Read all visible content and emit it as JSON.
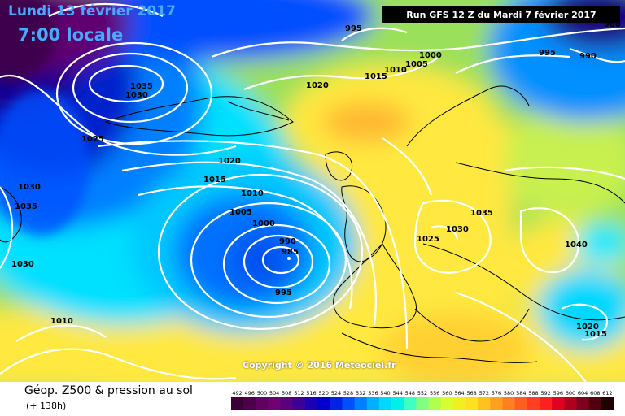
{
  "header": {
    "date": "Lundi 13 février 2017",
    "time": "7:00 locale",
    "run": "Run GFS 12 Z du Mardi 7 février 2017"
  },
  "copyright": "Copyright © 2016 Meteociel.fr",
  "footer": {
    "title": "Géop. Z500 & pression au sol",
    "subtitle": "(+ 138h)"
  },
  "pressure_labels": [
    "995",
    "1000",
    "1005",
    "1010",
    "1015",
    "1020",
    "1035",
    "1030",
    "1025",
    "1030",
    "1035",
    "1030",
    "1020",
    "1015",
    "1010",
    "1005",
    "1000",
    "990",
    "985",
    "995",
    "1010",
    "1035",
    "1030",
    "1025",
    "1040",
    "1020",
    "1015",
    "995",
    "990",
    "980"
  ],
  "scale": {
    "values": [
      "492",
      "496",
      "500",
      "504",
      "508",
      "512",
      "516",
      "520",
      "524",
      "528",
      "532",
      "536",
      "540",
      "544",
      "548",
      "552",
      "556",
      "560",
      "564",
      "568",
      "572",
      "576",
      "580",
      "584",
      "588",
      "592",
      "596",
      "600",
      "604",
      "608",
      "612"
    ],
    "colors": [
      "#3a0038",
      "#4c004c",
      "#600060",
      "#710071",
      "#5a0080",
      "#3c0099",
      "#1d00b4",
      "#0000cc",
      "#0022e6",
      "#0050ff",
      "#0080ff",
      "#00b0ff",
      "#00d8ff",
      "#00f0e8",
      "#40ffc0",
      "#80ff80",
      "#b0ff50",
      "#d8ff30",
      "#f0f020",
      "#ffe020",
      "#ffc020",
      "#ffa020",
      "#ff8020",
      "#ff6020",
      "#ff4020",
      "#ff2020",
      "#e00020",
      "#b00020",
      "#800020",
      "#500010",
      "#200000"
    ]
  }
}
